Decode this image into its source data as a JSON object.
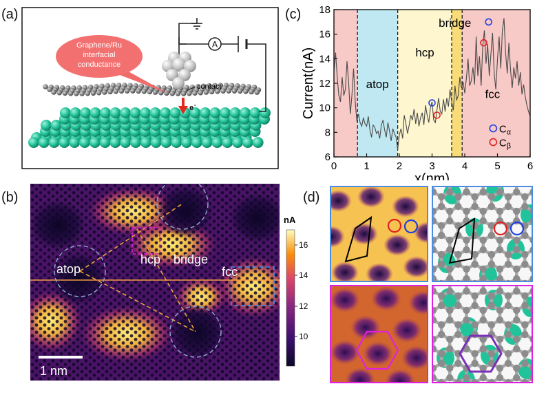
{
  "panels": {
    "a": {
      "label": "(a)",
      "callout": [
        "Graphene/Ru",
        "interfacial",
        "conductance"
      ],
      "ammeter": "A",
      "contact": "contact",
      "electron": "e",
      "electron_sup": "-"
    },
    "b": {
      "label": "(b)",
      "site_labels": {
        "atop": "atop",
        "hcp": "hcp",
        "bridge": "bridge",
        "fcc": "fcc"
      },
      "scalebar": "1 nm",
      "colorbar": {
        "unit": "nA",
        "ticks": [
          "16",
          "14",
          "12",
          "10"
        ],
        "min": 8.3,
        "max": 17.2
      }
    },
    "c": {
      "label": "(c)",
      "region_labels": {
        "atop": "atop",
        "hcp": "hcp",
        "bridge": "bridge",
        "fcc": "fcc"
      },
      "legend": [
        {
          "symbol": "blue-circle",
          "label": "C",
          "sub": "α",
          "color": "#1f3fe0"
        },
        {
          "symbol": "red-circle",
          "label": "C",
          "sub": "β",
          "color": "#e02020"
        }
      ]
    },
    "d": {
      "label": "(d)"
    }
  },
  "colors": {
    "blue_frame": "#4a8ce0",
    "magenta_frame": "#e020e0",
    "ru_green": "#21c49a",
    "graphene_grey": "#8c8c8c",
    "fcc_region": "#f7c9c7",
    "atop_region": "#bfe8f2",
    "hcp_region": "#fdf6cf",
    "bridge_region": "#f9dc7a"
  },
  "chart_data": {
    "type": "line",
    "xlabel": "x(nm)",
    "ylabel": "Current(nA)",
    "xlim": [
      0,
      6
    ],
    "ylim": [
      6,
      18
    ],
    "xticks": [
      "0",
      "1",
      "2",
      "3",
      "4",
      "5",
      "6"
    ],
    "yticks": [
      "6",
      "8",
      "10",
      "12",
      "14",
      "16",
      "18"
    ],
    "region_boundaries": [
      0.72,
      1.95,
      3.6,
      3.92
    ],
    "regions": [
      {
        "name": "",
        "from": 0,
        "to": 0.72
      },
      {
        "name": "atop",
        "from": 0.72,
        "to": 1.95
      },
      {
        "name": "hcp",
        "from": 1.95,
        "to": 3.6
      },
      {
        "name": "bridge",
        "from": 3.6,
        "to": 3.92
      },
      {
        "name": "fcc",
        "from": 3.92,
        "to": 6
      }
    ],
    "series": [
      {
        "x": [
          0,
          0.05,
          0.1,
          0.15,
          0.2,
          0.25,
          0.3,
          0.35,
          0.4,
          0.45,
          0.5,
          0.55,
          0.6,
          0.65,
          0.7,
          0.75,
          0.8,
          0.85,
          0.9,
          0.95,
          1.0,
          1.05,
          1.1,
          1.15,
          1.2,
          1.25,
          1.3,
          1.35,
          1.4,
          1.45,
          1.5,
          1.55,
          1.6,
          1.65,
          1.7,
          1.75,
          1.8,
          1.85,
          1.9,
          1.95,
          2.0,
          2.05,
          2.1,
          2.15,
          2.2,
          2.25,
          2.3,
          2.35,
          2.4,
          2.45,
          2.5,
          2.55,
          2.6,
          2.65,
          2.7,
          2.75,
          2.8,
          2.85,
          2.9,
          2.95,
          3.0,
          3.05,
          3.1,
          3.15,
          3.2,
          3.25,
          3.3,
          3.35,
          3.4,
          3.45,
          3.5,
          3.55,
          3.6,
          3.65,
          3.7,
          3.75,
          3.8,
          3.85,
          3.9,
          3.95,
          4.0,
          4.05,
          4.1,
          4.15,
          4.2,
          4.25,
          4.3,
          4.35,
          4.4,
          4.45,
          4.5,
          4.55,
          4.6,
          4.65,
          4.7,
          4.75,
          4.8,
          4.85,
          4.9,
          4.95,
          5.0,
          5.05,
          5.1,
          5.15,
          5.2,
          5.25,
          5.3,
          5.35,
          5.4,
          5.45,
          5.5,
          5.55,
          5.6,
          5.65,
          5.7,
          5.75,
          5.8,
          5.85,
          5.9,
          5.95,
          6.0
        ],
        "y": [
          13.0,
          14.5,
          12.5,
          11.0,
          10.5,
          12.5,
          11.0,
          11.5,
          13.8,
          12.0,
          9.5,
          11.0,
          13.2,
          10.5,
          8.9,
          9.5,
          8.8,
          8.5,
          9.2,
          8.7,
          8.5,
          9.3,
          8.2,
          7.6,
          8.6,
          8.4,
          7.9,
          8.1,
          7.5,
          8.6,
          9.0,
          8.2,
          7.6,
          8.8,
          8.1,
          7.3,
          8.3,
          7.9,
          7.6,
          6.6,
          7.8,
          8.3,
          7.5,
          9.4,
          8.7,
          7.9,
          8.6,
          9.4,
          9.0,
          9.9,
          8.7,
          9.6,
          8.5,
          9.2,
          9.6,
          8.6,
          10.2,
          9.4,
          8.8,
          10.0,
          10.5,
          9.0,
          8.8,
          9.8,
          10.8,
          9.7,
          9.5,
          10.7,
          9.7,
          10.8,
          10.1,
          11.5,
          10.5,
          9.8,
          11.8,
          10.6,
          11.0,
          12.5,
          11.6,
          12.1,
          11.2,
          12.4,
          14.0,
          11.8,
          12.2,
          13.3,
          11.9,
          15.8,
          12.6,
          14.2,
          11.8,
          15.0,
          16.3,
          13.6,
          15.2,
          12.6,
          14.4,
          16.1,
          12.8,
          11.5,
          13.9,
          15.8,
          13.2,
          16.3,
          17.3,
          14.4,
          12.8,
          15.3,
          13.1,
          11.6,
          13.3,
          12.4,
          13.8,
          11.8,
          12.9,
          11.1,
          11.9,
          10.9,
          10.2,
          9.7,
          9.3
        ]
      }
    ],
    "markers": [
      {
        "name": "C_alpha",
        "x": 3.0,
        "y": 10.4,
        "color": "#1f3fe0"
      },
      {
        "name": "C_beta",
        "x": 3.15,
        "y": 9.4,
        "color": "#e02020"
      },
      {
        "name": "C_alpha",
        "x": 4.73,
        "y": 17.0,
        "color": "#1f3fe0"
      },
      {
        "name": "C_beta",
        "x": 4.58,
        "y": 15.3,
        "color": "#e02020"
      }
    ]
  }
}
